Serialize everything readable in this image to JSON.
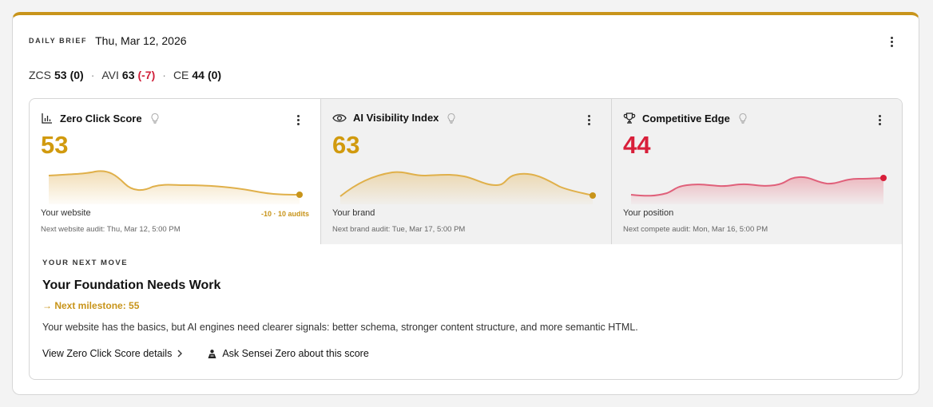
{
  "header": {
    "eyebrow": "DAILY BRIEF",
    "date": "Thu, Mar 12, 2026"
  },
  "summary": {
    "zcs_label": "ZCS",
    "zcs_value": "53",
    "zcs_delta": "(0)",
    "separator": "·",
    "avi_label": "AVI",
    "avi_value": "63",
    "avi_delta": "(-7)",
    "ce_label": "CE",
    "ce_value": "44",
    "ce_delta": "(0)"
  },
  "panels": [
    {
      "title": "Zero Click Score",
      "value": "53",
      "label": "Your website",
      "delta": "-10 · 10 audits",
      "next": "Next website audit: Thu, Mar 12, 5:00 PM",
      "color": "#d19a0e"
    },
    {
      "title": "AI Visibility Index",
      "value": "63",
      "label": "Your brand",
      "next": "Next brand audit: Tue, Mar 17, 5:00 PM",
      "color": "#d19a0e"
    },
    {
      "title": "Competitive Edge",
      "value": "44",
      "label": "Your position",
      "next": "Next compete audit: Mon, Mar 16, 5:00 PM",
      "color": "#d81f3a"
    }
  ],
  "next_move": {
    "eyebrow": "YOUR NEXT MOVE",
    "title": "Your Foundation Needs Work",
    "milestone": "→ Next milestone: 55",
    "description": "Your website has the basics, but AI engines need clearer signals: better schema, stronger content structure, and more semantic HTML.",
    "details_link": "View Zero Click Score details",
    "ask_link": "Ask Sensei Zero about this score"
  },
  "icons": {
    "panel1": "bar-chart-icon",
    "panel2": "eye-icon",
    "panel3": "trophy-icon",
    "hint": "lightbulb-icon",
    "menu": "kebab-menu-icon",
    "chevron": "chevron-right-icon",
    "sensei": "sensei-icon"
  }
}
